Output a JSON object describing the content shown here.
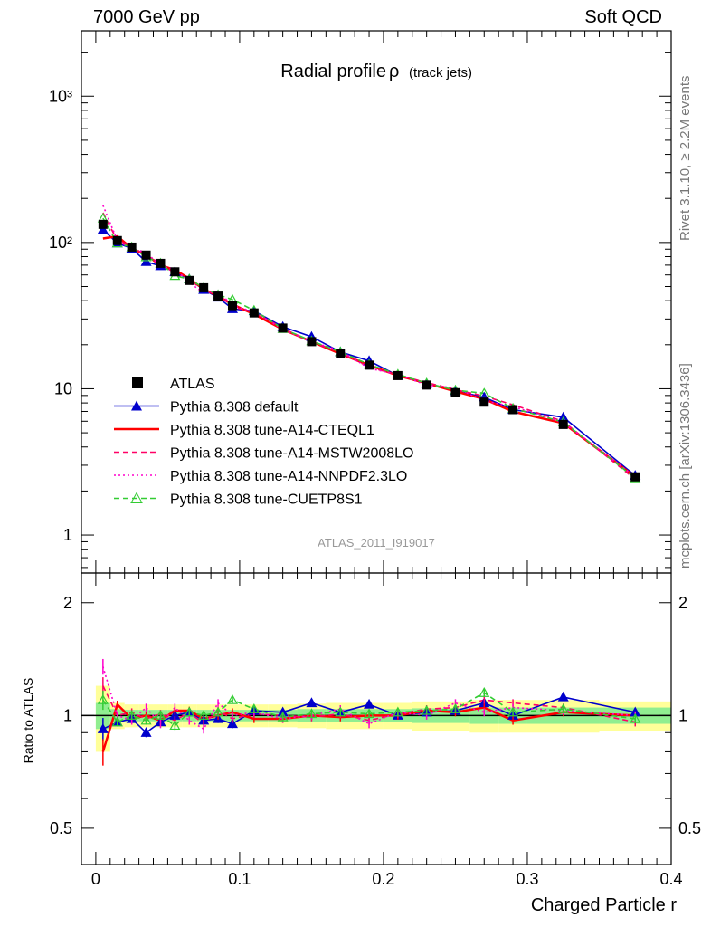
{
  "header": {
    "left": "7000 GeV pp",
    "right": "Soft QCD"
  },
  "side": {
    "rivet": "Rivet 3.1.10, ≥ 2.2M events",
    "mcplots": "mcplots.cern.ch [arXiv:1306.3436]"
  },
  "chart_data": {
    "type": "line",
    "title": "Radial profile",
    "title_symbol": "ρ",
    "title_suffix": "(track jets)",
    "watermark": "ATLAS_2011_I919017",
    "xlabel": "Charged Particle r",
    "ratio_ylabel": "Ratio to ATLAS",
    "xlim": [
      -0.01,
      0.4
    ],
    "ylim": [
      0.55,
      2800
    ],
    "yscale": "log",
    "ratio_ylim": [
      0.4,
      2.4
    ],
    "xticks": [
      "0",
      "0.1",
      "0.2",
      "0.3",
      "0.4"
    ],
    "yticks": [
      "1",
      "10",
      "10²",
      "10³"
    ],
    "ratio_yticks": [
      "0.5",
      "1",
      "2"
    ],
    "legend_position": "bottom-left",
    "colors": {
      "default": "#0000cc",
      "a14cteql1": "#ff0000",
      "mstw": "#ff0066",
      "nnpdf": "#ff00cc",
      "cuetp8s1": "#33cc33",
      "band_inner": "#90ee90",
      "band_outer": "#ffff99"
    },
    "x": [
      0.005,
      0.015,
      0.025,
      0.035,
      0.045,
      0.055,
      0.065,
      0.075,
      0.085,
      0.095,
      0.11,
      0.13,
      0.15,
      0.17,
      0.19,
      0.21,
      0.23,
      0.25,
      0.27,
      0.29,
      0.325,
      0.375
    ],
    "x_edges": [
      0.0,
      0.01,
      0.02,
      0.03,
      0.04,
      0.05,
      0.06,
      0.07,
      0.08,
      0.09,
      0.1,
      0.12,
      0.14,
      0.16,
      0.18,
      0.2,
      0.22,
      0.24,
      0.26,
      0.28,
      0.3,
      0.35,
      0.4
    ],
    "band_inner": [
      0.08,
      0.04,
      0.035,
      0.035,
      0.035,
      0.035,
      0.035,
      0.035,
      0.035,
      0.035,
      0.035,
      0.035,
      0.04,
      0.04,
      0.04,
      0.04,
      0.045,
      0.045,
      0.05,
      0.05,
      0.05,
      0.05
    ],
    "band_outer": [
      0.2,
      0.08,
      0.07,
      0.07,
      0.07,
      0.07,
      0.07,
      0.07,
      0.07,
      0.07,
      0.07,
      0.07,
      0.075,
      0.08,
      0.08,
      0.08,
      0.09,
      0.09,
      0.1,
      0.1,
      0.1,
      0.09
    ],
    "data": {
      "name": "ATLAS",
      "values": [
        133,
        103,
        93,
        82,
        72,
        63,
        55,
        49,
        43,
        37,
        33,
        26,
        21,
        17.5,
        14.5,
        12.3,
        10.6,
        9.4,
        8.1,
        7.2,
        5.7,
        2.5
      ]
    },
    "series": [
      {
        "name": "Pythia 8.308 default",
        "key": "default",
        "style": "solid",
        "marker": "triangle-filled",
        "ratio": [
          0.92,
          0.96,
          0.98,
          0.9,
          0.96,
          1.0,
          1.02,
          0.97,
          0.98,
          0.95,
          1.03,
          1.02,
          1.08,
          1.02,
          1.07,
          1.0,
          1.02,
          1.03,
          1.08,
          1.0,
          1.12,
          1.02
        ]
      },
      {
        "name": "Pythia 8.308 tune-A14-CTEQL1",
        "key": "a14cteql1",
        "style": "solid",
        "marker": "none",
        "ratio": [
          0.8,
          1.07,
          0.98,
          1.0,
          0.97,
          1.03,
          1.03,
          0.98,
          1.0,
          1.02,
          0.98,
          0.98,
          1.0,
          0.99,
          1.0,
          1.0,
          1.03,
          1.02,
          1.05,
          0.97,
          1.02,
          1.0
        ]
      },
      {
        "name": "Pythia 8.308 tune-A14-MSTW2008LO",
        "key": "mstw",
        "style": "dashed",
        "marker": "none",
        "ratio": [
          1.2,
          1.0,
          1.02,
          0.98,
          1.01,
          0.97,
          1.02,
          0.95,
          1.03,
          0.98,
          1.01,
          1.0,
          0.99,
          1.01,
          0.97,
          1.01,
          1.04,
          1.05,
          1.1,
          1.08,
          1.05,
          0.96
        ]
      },
      {
        "name": "Pythia 8.308 tune-A14-NNPDF2.3LO",
        "key": "nnpdf",
        "style": "dotted",
        "marker": "none",
        "ratio": [
          1.35,
          1.0,
          0.97,
          1.05,
          0.95,
          1.05,
          0.97,
          0.92,
          1.08,
          1.0,
          1.02,
          0.98,
          1.0,
          1.04,
          0.95,
          1.02,
          1.0,
          1.08,
          1.02,
          1.05,
          1.03,
          1.0
        ]
      },
      {
        "name": "Pythia 8.308 tune-CUETP8S1",
        "key": "cuetp8s1",
        "style": "dashed",
        "marker": "triangle-open",
        "ratio": [
          1.1,
          0.96,
          1.0,
          0.97,
          1.0,
          0.94,
          1.02,
          1.0,
          1.02,
          1.1,
          1.04,
          0.99,
          1.01,
          1.02,
          1.01,
          1.02,
          1.03,
          1.04,
          1.15,
          1.02,
          1.04,
          0.98
        ]
      }
    ]
  }
}
